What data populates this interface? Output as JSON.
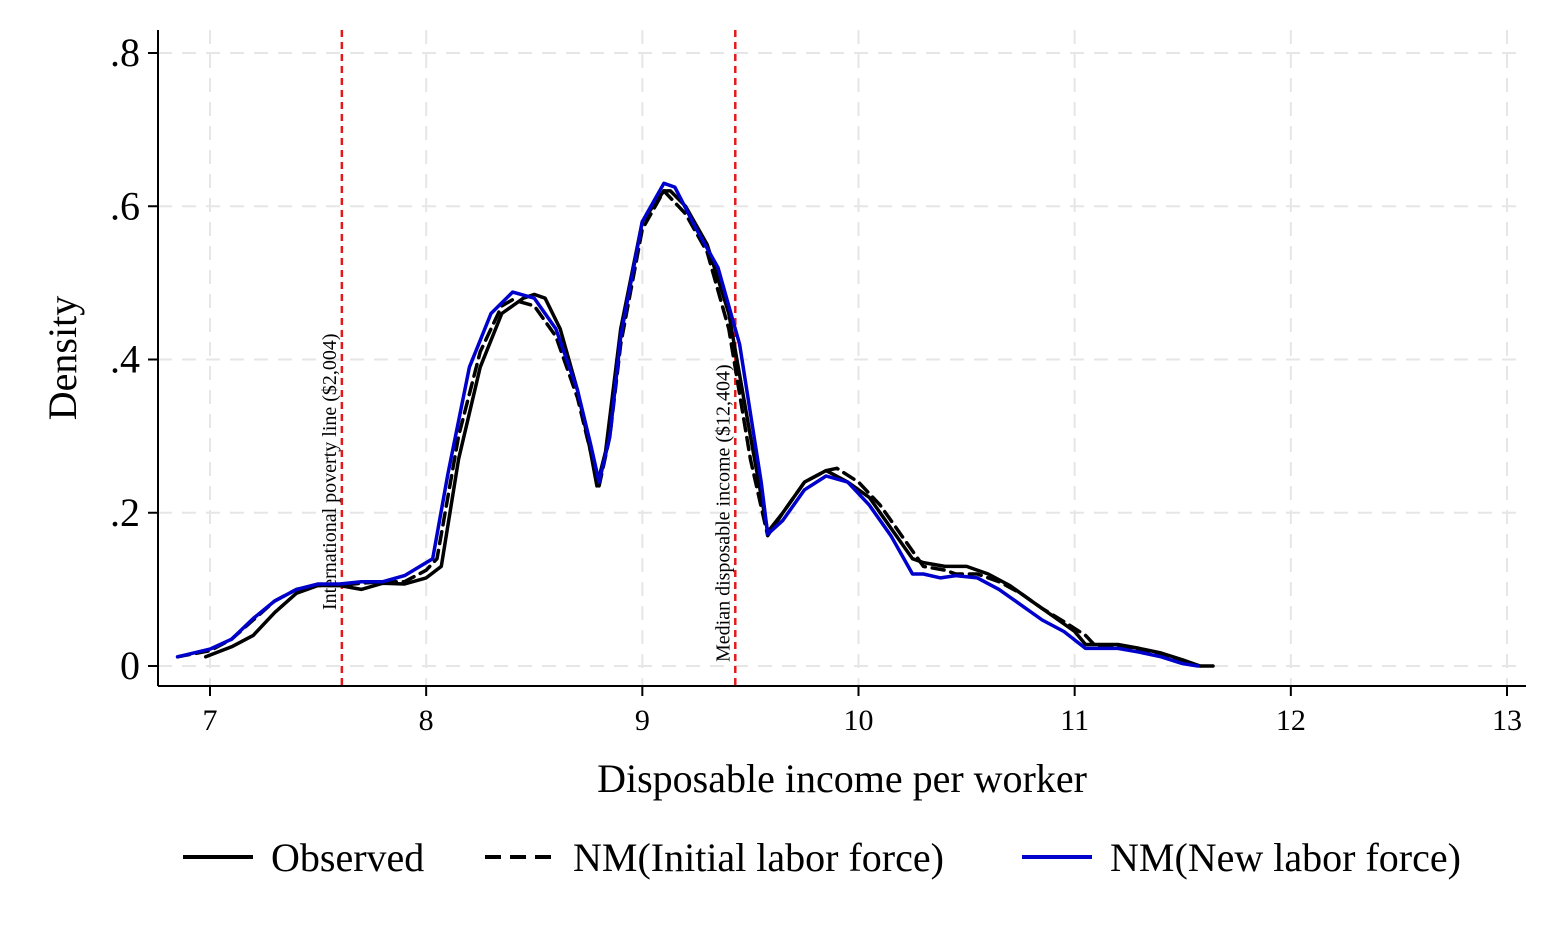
{
  "chart_data": {
    "type": "line",
    "xlabel": "Disposable income per worker",
    "ylabel": "Density",
    "xlim": [
      6.8,
      13.1
    ],
    "ylim": [
      -0.027,
      0.83
    ],
    "xticks": [
      7,
      8,
      9,
      10,
      11,
      12,
      13
    ],
    "xtick_labels": [
      "7",
      "8",
      "9",
      "10",
      "11",
      "12",
      "13"
    ],
    "yticks": [
      0,
      0.2,
      0.4,
      0.6,
      0.8
    ],
    "ytick_labels": [
      "0",
      ".2",
      ".4",
      ".6",
      ".8"
    ],
    "grid": true,
    "legend_position": "bottom",
    "reference_lines": [
      {
        "x": 7.61,
        "label": "International poverty line ($2,004)",
        "color": "#e31a1c"
      },
      {
        "x": 9.43,
        "label": "Median disposable income ($12,404)",
        "color": "#e31a1c"
      }
    ],
    "series": [
      {
        "name": "Observed",
        "color": "#000000",
        "dash": "solid",
        "x": [
          6.98,
          7.1,
          7.2,
          7.3,
          7.4,
          7.5,
          7.6,
          7.7,
          7.8,
          7.9,
          8.0,
          8.07,
          8.15,
          8.25,
          8.35,
          8.45,
          8.5,
          8.55,
          8.62,
          8.7,
          8.76,
          8.79,
          8.83,
          8.9,
          9.0,
          9.1,
          9.13,
          9.2,
          9.3,
          9.4,
          9.5,
          9.58,
          9.65,
          9.75,
          9.85,
          9.95,
          10.05,
          10.15,
          10.25,
          10.3,
          10.4,
          10.5,
          10.6,
          10.7,
          10.8,
          10.9,
          11.0,
          11.05,
          11.1,
          11.2,
          11.3,
          11.4,
          11.5,
          11.58,
          11.64
        ],
        "y": [
          0.012,
          0.025,
          0.04,
          0.07,
          0.095,
          0.105,
          0.105,
          0.1,
          0.108,
          0.107,
          0.115,
          0.13,
          0.27,
          0.39,
          0.46,
          0.48,
          0.485,
          0.48,
          0.44,
          0.36,
          0.28,
          0.235,
          0.28,
          0.44,
          0.58,
          0.62,
          0.62,
          0.6,
          0.55,
          0.46,
          0.3,
          0.175,
          0.2,
          0.24,
          0.255,
          0.24,
          0.22,
          0.18,
          0.14,
          0.135,
          0.13,
          0.13,
          0.12,
          0.105,
          0.085,
          0.065,
          0.045,
          0.028,
          0.028,
          0.028,
          0.023,
          0.017,
          0.008,
          0.0,
          0.0
        ]
      },
      {
        "name": "NM(Initial labor force)",
        "color": "#000000",
        "dash": "dashed",
        "x": [
          6.85,
          7.0,
          7.1,
          7.2,
          7.3,
          7.4,
          7.5,
          7.6,
          7.7,
          7.8,
          7.9,
          8.0,
          8.05,
          8.15,
          8.25,
          8.35,
          8.4,
          8.5,
          8.6,
          8.7,
          8.76,
          8.8,
          8.85,
          8.9,
          9.0,
          9.1,
          9.2,
          9.3,
          9.4,
          9.5,
          9.58,
          9.65,
          9.75,
          9.85,
          9.9,
          10.0,
          10.1,
          10.2,
          10.3,
          10.4,
          10.45,
          10.55,
          10.65,
          10.75,
          10.85,
          10.95,
          11.05,
          11.1,
          11.2,
          11.3,
          11.4,
          11.5,
          11.58
        ],
        "y": [
          0.012,
          0.02,
          0.035,
          0.06,
          0.085,
          0.1,
          0.105,
          0.105,
          0.108,
          0.11,
          0.11,
          0.125,
          0.14,
          0.3,
          0.41,
          0.47,
          0.478,
          0.47,
          0.43,
          0.35,
          0.28,
          0.235,
          0.3,
          0.42,
          0.57,
          0.62,
          0.59,
          0.54,
          0.44,
          0.27,
          0.17,
          0.2,
          0.24,
          0.255,
          0.258,
          0.24,
          0.21,
          0.17,
          0.13,
          0.125,
          0.12,
          0.12,
          0.11,
          0.095,
          0.075,
          0.058,
          0.04,
          0.025,
          0.025,
          0.022,
          0.016,
          0.007,
          0.0
        ]
      },
      {
        "name": "NM(New labor force)",
        "color": "#0000cc",
        "dash": "solid",
        "x": [
          6.85,
          7.0,
          7.1,
          7.2,
          7.3,
          7.4,
          7.5,
          7.6,
          7.7,
          7.8,
          7.9,
          8.0,
          8.03,
          8.1,
          8.2,
          8.3,
          8.4,
          8.5,
          8.6,
          8.7,
          8.76,
          8.8,
          8.85,
          8.9,
          9.0,
          9.1,
          9.15,
          9.25,
          9.35,
          9.45,
          9.55,
          9.58,
          9.65,
          9.75,
          9.85,
          9.95,
          10.05,
          10.15,
          10.25,
          10.3,
          10.38,
          10.45,
          10.55,
          10.65,
          10.75,
          10.85,
          10.95,
          11.05,
          11.1,
          11.2,
          11.3,
          11.4,
          11.5,
          11.57
        ],
        "y": [
          0.012,
          0.022,
          0.035,
          0.062,
          0.085,
          0.1,
          0.107,
          0.107,
          0.11,
          0.11,
          0.118,
          0.135,
          0.14,
          0.25,
          0.39,
          0.46,
          0.488,
          0.48,
          0.44,
          0.36,
          0.29,
          0.24,
          0.3,
          0.43,
          0.58,
          0.63,
          0.625,
          0.57,
          0.52,
          0.42,
          0.24,
          0.172,
          0.19,
          0.23,
          0.248,
          0.24,
          0.21,
          0.17,
          0.12,
          0.12,
          0.115,
          0.118,
          0.115,
          0.1,
          0.08,
          0.06,
          0.045,
          0.023,
          0.023,
          0.023,
          0.018,
          0.012,
          0.003,
          0.0
        ]
      }
    ]
  }
}
